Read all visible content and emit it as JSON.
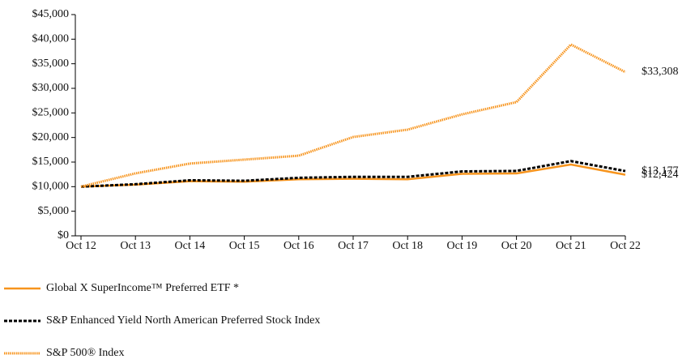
{
  "chart_data": {
    "type": "line",
    "categories": [
      "Oct 12",
      "Oct 13",
      "Oct 14",
      "Oct 15",
      "Oct 16",
      "Oct 17",
      "Oct 18",
      "Oct 19",
      "Oct 20",
      "Oct 21",
      "Oct 22"
    ],
    "series": [
      {
        "name": "Global X SuperIncome™ Preferred ETF *",
        "color": "#f7941d",
        "dash": "solid",
        "values": [
          10000,
          10400,
          11100,
          11000,
          11500,
          11600,
          11500,
          12600,
          12700,
          14500,
          12424
        ],
        "value_labels": [
          null,
          null,
          null,
          null,
          null,
          null,
          null,
          null,
          null,
          null,
          "$12,424"
        ]
      },
      {
        "name": "S&P Enhanced Yield North American Preferred Stock Index",
        "color": "#000000",
        "dash": "dashed",
        "values": [
          10000,
          10500,
          11300,
          11200,
          11800,
          12000,
          12000,
          13100,
          13200,
          15200,
          13177
        ],
        "value_labels": [
          null,
          null,
          null,
          null,
          null,
          null,
          null,
          null,
          null,
          null,
          "$13,177"
        ]
      },
      {
        "name": "S&P 500® Index",
        "color": "#f7941d",
        "dash": "dotted",
        "values": [
          10000,
          12700,
          14700,
          15500,
          16300,
          20100,
          21600,
          24700,
          27200,
          38900,
          33308
        ],
        "value_labels": [
          null,
          null,
          null,
          null,
          null,
          null,
          null,
          null,
          null,
          null,
          "$33,308"
        ]
      }
    ],
    "ylim": [
      0,
      45000
    ],
    "yticks": [
      {
        "value": 0,
        "label": "$0"
      },
      {
        "value": 5000,
        "label": "$5,000"
      },
      {
        "value": 10000,
        "label": "$10,000"
      },
      {
        "value": 15000,
        "label": "$15,000"
      },
      {
        "value": 20000,
        "label": "$20,000"
      },
      {
        "value": 25000,
        "label": "$25,000"
      },
      {
        "value": 30000,
        "label": "$30,000"
      },
      {
        "value": 35000,
        "label": "$35,000"
      },
      {
        "value": 40000,
        "label": "$40,000"
      },
      {
        "value": 45000,
        "label": "$45,000"
      }
    ],
    "grid": false,
    "legend": "bottom"
  }
}
